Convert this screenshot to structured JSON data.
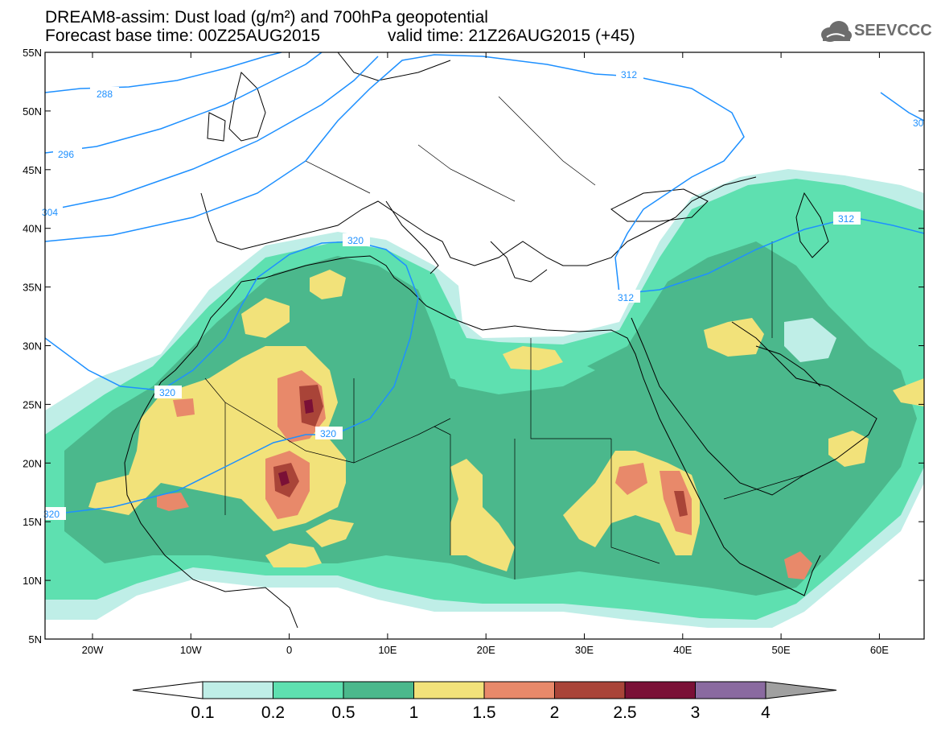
{
  "header": {
    "title_line1": "DREAM8-assim: Dust load (g/m²) and 700hPa geopotential",
    "title_line2": "Forecast base time: 00Z25AUG2015",
    "valid_time": "valid time: 21Z26AUG2015 (+45)",
    "logo_text": "SEEVCCC"
  },
  "map": {
    "lat_labels": [
      "55N",
      "50N",
      "45N",
      "40N",
      "35N",
      "30N",
      "25N",
      "20N",
      "15N",
      "10N",
      "5N"
    ],
    "lon_labels": [
      "20W",
      "10W",
      "0",
      "10E",
      "20E",
      "30E",
      "40E",
      "50E",
      "60E"
    ],
    "contour_labels": [
      "288",
      "296",
      "304",
      "312",
      "312",
      "312",
      "320",
      "320",
      "320",
      "320",
      "30"
    ],
    "colors": {
      "coast": "#000000",
      "contour": "#1e90ff",
      "c01": "#bfeee7",
      "c02": "#5ee0b0",
      "c05": "#4bb88c",
      "c10": "#f2e27a",
      "c15": "#e8896a",
      "c20": "#c0503f",
      "c25": "#a23a33",
      "c30": "#7a1036",
      "c40": "#8a6aa0"
    }
  },
  "colorbar": {
    "labels": [
      "0.1",
      "0.2",
      "0.5",
      "1",
      "1.5",
      "2",
      "2.5",
      "3",
      "4"
    ],
    "colors": [
      "#ffffff",
      "#bfeee7",
      "#5ee0b0",
      "#4bb88c",
      "#f2e27a",
      "#e8896a",
      "#a94438",
      "#7a1036",
      "#8a6aa0",
      "#a0a0a0"
    ]
  }
}
